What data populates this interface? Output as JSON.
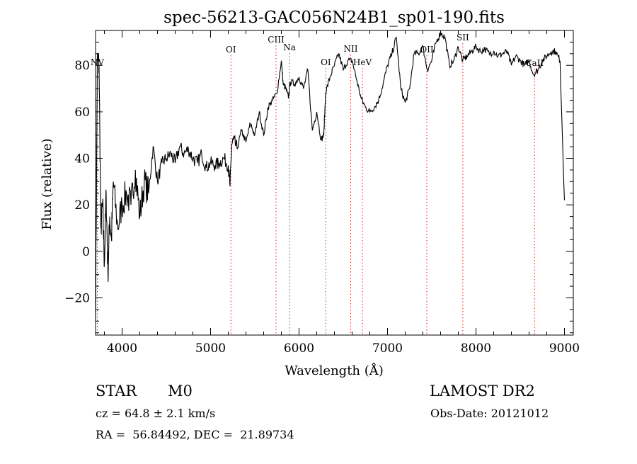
{
  "chart_data": {
    "type": "line",
    "title": "spec-56213-GAC056N24B1_sp01-190.fits",
    "xlabel": "Wavelength (Å)",
    "ylabel": "Flux (relative)",
    "xlim": [
      3700,
      9100
    ],
    "ylim": [
      -36,
      95
    ],
    "x_ticks": [
      4000,
      5000,
      6000,
      7000,
      8000,
      9000
    ],
    "x_tick_labels": [
      "4000",
      "5000",
      "6000",
      "7000",
      "8000",
      "9000"
    ],
    "y_ticks": [
      -20,
      0,
      20,
      40,
      60,
      80
    ],
    "y_tick_labels": [
      "−20",
      "0",
      "20",
      "40",
      "60",
      "80"
    ],
    "grid": false,
    "series": [
      {
        "x": [
          3700,
          3720,
          3740,
          3760,
          3780,
          3800,
          3820,
          3840,
          3860,
          3880,
          3900,
          3950,
          4000,
          4050,
          4100,
          4150,
          4200,
          4250,
          4300,
          4350,
          4400,
          4450,
          4500,
          4550,
          4600,
          4650,
          4700,
          4750,
          4800,
          4850,
          4900,
          4950,
          5000,
          5050,
          5100,
          5150,
          5200,
          5220,
          5240,
          5260,
          5300,
          5350,
          5400,
          5450,
          5500,
          5550,
          5600,
          5650,
          5700,
          5750,
          5800,
          5820,
          5850,
          5880,
          5900,
          5950,
          6000,
          6050,
          6100,
          6150,
          6200,
          6250,
          6280,
          6300,
          6350,
          6400,
          6450,
          6500,
          6550,
          6600,
          6650,
          6700,
          6750,
          6800,
          6850,
          6900,
          6950,
          7000,
          7050,
          7100,
          7150,
          7200,
          7250,
          7300,
          7350,
          7400,
          7450,
          7500,
          7550,
          7600,
          7650,
          7700,
          7750,
          7800,
          7850,
          7900,
          7950,
          8000,
          8050,
          8100,
          8150,
          8200,
          8250,
          8300,
          8350,
          8400,
          8450,
          8500,
          8550,
          8600,
          8650,
          8700,
          8750,
          8800,
          8850,
          8900,
          8950,
          9000
        ],
        "y": [
          -30,
          82,
          80,
          10,
          20,
          -5,
          25,
          -10,
          15,
          5,
          30,
          10,
          20,
          25,
          20,
          35,
          15,
          30,
          25,
          45,
          30,
          38,
          40,
          42,
          38,
          45,
          42,
          44,
          40,
          38,
          42,
          36,
          38,
          37,
          38,
          40,
          37,
          28,
          46,
          48,
          44,
          52,
          47,
          55,
          50,
          60,
          50,
          62,
          65,
          68,
          82,
          72,
          70,
          66,
          73,
          72,
          75,
          70,
          78,
          52,
          60,
          48,
          50,
          68,
          75,
          80,
          85,
          78,
          82,
          82,
          74,
          66,
          62,
          60,
          62,
          65,
          72,
          80,
          85,
          92,
          70,
          64,
          70,
          85,
          85,
          88,
          78,
          82,
          90,
          94,
          92,
          80,
          82,
          88,
          82,
          84,
          86,
          88,
          86,
          87,
          85,
          86,
          84,
          85,
          86,
          80,
          84,
          82,
          80,
          82,
          76,
          78,
          82,
          84,
          86,
          86,
          82,
          22
        ]
      }
    ],
    "lines": [
      {
        "label": "NV",
        "x": 3720
      },
      {
        "label": "OI",
        "x": 5230
      },
      {
        "label": "CIII",
        "x": 5740
      },
      {
        "label": "Na",
        "x": 5893
      },
      {
        "label": "OI",
        "x": 6303
      },
      {
        "label": "NII",
        "x": 6584
      },
      {
        "label": "HeV",
        "x": 6716
      },
      {
        "label": "OII",
        "x": 7444
      },
      {
        "label": "SII",
        "x": 7851
      },
      {
        "label": "CaII",
        "x": 8662
      }
    ]
  },
  "info": {
    "object_class": "STAR",
    "subclass": "M0",
    "survey": "LAMOST DR2",
    "cz": "cz = 64.8 ± 2.1 km/s",
    "obs_date": "Obs-Date: 20121012",
    "coords": "RA =  56.84492, DEC =  21.89734"
  }
}
